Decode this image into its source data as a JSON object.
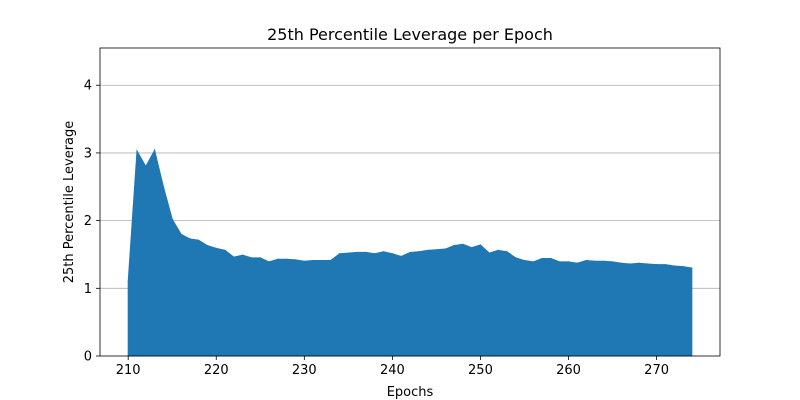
{
  "chart_data": {
    "type": "area",
    "title": "25th Percentile Leverage per Epoch",
    "xlabel": "Epochs",
    "ylabel": "25th Percentile Leverage",
    "xlim": [
      206.8,
      277.2
    ],
    "ylim": [
      0,
      4.55
    ],
    "xticks": [
      210,
      220,
      230,
      240,
      250,
      260,
      270
    ],
    "yticks": [
      0,
      1,
      2,
      3,
      4
    ],
    "grid": "y-major",
    "color": "#1f77b4",
    "x": [
      210,
      211,
      212,
      213,
      214,
      215,
      216,
      217,
      218,
      219,
      220,
      221,
      222,
      223,
      224,
      225,
      226,
      227,
      228,
      229,
      230,
      231,
      232,
      233,
      234,
      235,
      236,
      237,
      238,
      239,
      240,
      241,
      242,
      243,
      244,
      245,
      246,
      247,
      248,
      249,
      250,
      251,
      252,
      253,
      254,
      255,
      256,
      257,
      258,
      259,
      260,
      261,
      262,
      263,
      264,
      265,
      266,
      267,
      268,
      269,
      270,
      271,
      272,
      273,
      274
    ],
    "y": [
      1.1,
      3.03,
      2.8,
      3.04,
      2.5,
      2.02,
      1.8,
      1.73,
      1.71,
      1.63,
      1.59,
      1.56,
      1.46,
      1.49,
      1.45,
      1.45,
      1.39,
      1.43,
      1.43,
      1.42,
      1.4,
      1.41,
      1.41,
      1.41,
      1.51,
      1.52,
      1.53,
      1.53,
      1.51,
      1.54,
      1.51,
      1.47,
      1.53,
      1.54,
      1.56,
      1.57,
      1.58,
      1.63,
      1.65,
      1.6,
      1.64,
      1.52,
      1.56,
      1.54,
      1.45,
      1.41,
      1.39,
      1.44,
      1.44,
      1.39,
      1.39,
      1.37,
      1.41,
      1.4,
      1.4,
      1.39,
      1.37,
      1.36,
      1.37,
      1.36,
      1.35,
      1.35,
      1.33,
      1.32,
      1.3
    ]
  }
}
